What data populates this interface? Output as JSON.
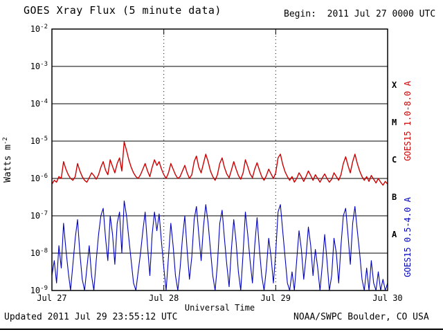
{
  "title": "GOES Xray Flux (5 minute data)",
  "begin_label": "Begin:  2011 Jul 27 0000 UTC",
  "footer": {
    "updated": "Updated 2011 Jul 29 23:55:12 UTC",
    "source": "NOAA/SWPC Boulder, CO USA"
  },
  "colors": {
    "long": "#cc0000",
    "short": "#0000bb",
    "axis": "#000000",
    "background": "#ffffff"
  },
  "chart_data": {
    "type": "line",
    "title": "GOES Xray Flux (5 minute data)",
    "xlabel": "Universal Time",
    "ylabel": "Watts m^-2",
    "x_axis_units": "hours since 2011 Jul 27 0000 UTC",
    "x_start_hours": 0,
    "x_end_hours": 72,
    "x_ticks": [
      {
        "label": "Jul 27",
        "hour": 0
      },
      {
        "label": "Jul 28",
        "hour": 24
      },
      {
        "label": "Jul 29",
        "hour": 48
      },
      {
        "label": "Jul 30",
        "hour": 72
      }
    ],
    "y_scale": "log10",
    "y_exponents": [
      -2,
      -3,
      -4,
      -5,
      -6,
      -7,
      -8,
      -9
    ],
    "ylim_log": [
      -9,
      -2
    ],
    "grid": {
      "horizontal": "solid",
      "vertical_dotted_hours": [
        24,
        48
      ]
    },
    "legend_position": "right-rotated",
    "flare_classes": [
      {
        "label": "X",
        "exp_range": [
          -4,
          -3
        ]
      },
      {
        "label": "M",
        "exp_range": [
          -5,
          -4
        ]
      },
      {
        "label": "C",
        "exp_range": [
          -6,
          -5
        ]
      },
      {
        "label": "B",
        "exp_range": [
          -7,
          -6
        ]
      },
      {
        "label": "A",
        "exp_range": [
          -8,
          -7
        ]
      }
    ],
    "series": [
      {
        "name": "GOES15 1.0-8.0 A",
        "color_key": "long",
        "step_hours": 0.5,
        "log10_values": [
          -6.15,
          -6.05,
          -6.1,
          -5.95,
          -6.0,
          -5.55,
          -5.75,
          -5.9,
          -6.0,
          -6.05,
          -5.95,
          -5.6,
          -5.8,
          -5.95,
          -6.05,
          -6.1,
          -5.98,
          -5.85,
          -5.92,
          -6.02,
          -5.9,
          -5.7,
          -5.55,
          -5.78,
          -5.9,
          -5.5,
          -5.68,
          -5.85,
          -5.6,
          -5.45,
          -5.8,
          -5.02,
          -5.25,
          -5.5,
          -5.7,
          -5.85,
          -5.95,
          -6.0,
          -5.9,
          -5.75,
          -5.6,
          -5.8,
          -5.95,
          -5.7,
          -5.5,
          -5.65,
          -5.55,
          -5.75,
          -5.9,
          -6.0,
          -5.85,
          -5.6,
          -5.75,
          -5.9,
          -6.0,
          -5.95,
          -5.8,
          -5.65,
          -5.85,
          -6.0,
          -5.9,
          -5.55,
          -5.4,
          -5.7,
          -5.85,
          -5.6,
          -5.35,
          -5.55,
          -5.8,
          -5.95,
          -6.05,
          -5.9,
          -5.6,
          -5.45,
          -5.7,
          -5.88,
          -5.98,
          -5.78,
          -5.55,
          -5.75,
          -5.92,
          -6.02,
          -5.85,
          -5.5,
          -5.68,
          -5.88,
          -5.98,
          -5.75,
          -5.58,
          -5.78,
          -5.95,
          -6.05,
          -5.92,
          -5.75,
          -5.88,
          -6.0,
          -5.85,
          -5.45,
          -5.35,
          -5.62,
          -5.82,
          -5.95,
          -6.05,
          -5.95,
          -6.1,
          -6.0,
          -5.85,
          -5.95,
          -6.08,
          -5.95,
          -5.8,
          -5.92,
          -6.05,
          -5.9,
          -6.0,
          -6.1,
          -5.98,
          -5.88,
          -6.0,
          -6.1,
          -6.02,
          -5.85,
          -5.95,
          -6.05,
          -5.9,
          -5.6,
          -5.42,
          -5.65,
          -5.85,
          -5.55,
          -5.35,
          -5.6,
          -5.8,
          -5.95,
          -6.05,
          -5.95,
          -6.08,
          -5.92,
          -6.02,
          -6.12,
          -6.0,
          -6.1,
          -6.18,
          -6.08,
          -6.15
        ]
      },
      {
        "name": "GOES15 0.5-4.0 A",
        "color_key": "short",
        "step_hours": 0.5,
        "log10_values": [
          -8.6,
          -8.2,
          -8.8,
          -7.8,
          -8.4,
          -7.2,
          -7.9,
          -8.5,
          -9.0,
          -8.3,
          -7.6,
          -7.1,
          -8.0,
          -8.7,
          -9.0,
          -8.4,
          -7.8,
          -8.6,
          -9.0,
          -8.2,
          -7.5,
          -7.0,
          -6.8,
          -7.6,
          -8.2,
          -7.0,
          -7.5,
          -8.3,
          -7.2,
          -6.9,
          -8.0,
          -6.6,
          -7.0,
          -7.6,
          -8.2,
          -8.8,
          -9.0,
          -8.5,
          -8.0,
          -7.4,
          -6.9,
          -7.8,
          -8.6,
          -7.5,
          -6.9,
          -7.4,
          -6.95,
          -7.7,
          -8.4,
          -9.0,
          -8.1,
          -7.2,
          -7.8,
          -8.6,
          -9.0,
          -8.4,
          -7.6,
          -7.0,
          -7.9,
          -8.7,
          -8.1,
          -7.1,
          -6.75,
          -7.5,
          -8.2,
          -7.3,
          -6.7,
          -7.2,
          -7.9,
          -8.6,
          -9.0,
          -8.3,
          -7.2,
          -6.85,
          -7.6,
          -8.3,
          -8.9,
          -7.9,
          -7.1,
          -7.7,
          -8.5,
          -9.0,
          -8.0,
          -6.9,
          -7.5,
          -8.2,
          -8.8,
          -7.8,
          -7.05,
          -7.9,
          -8.6,
          -9.0,
          -8.4,
          -7.6,
          -8.1,
          -8.8,
          -8.0,
          -6.9,
          -6.7,
          -7.4,
          -8.1,
          -8.8,
          -9.0,
          -8.5,
          -9.0,
          -8.2,
          -7.4,
          -7.9,
          -8.7,
          -8.1,
          -7.3,
          -7.8,
          -8.6,
          -7.9,
          -8.4,
          -9.0,
          -8.3,
          -7.5,
          -8.2,
          -9.0,
          -8.6,
          -7.6,
          -8.0,
          -8.8,
          -7.8,
          -7.0,
          -6.8,
          -7.5,
          -8.3,
          -7.2,
          -6.75,
          -7.4,
          -8.0,
          -8.7,
          -9.0,
          -8.4,
          -9.0,
          -8.2,
          -8.8,
          -9.0,
          -8.5,
          -9.0,
          -8.7,
          -9.0,
          -8.8
        ]
      }
    ]
  }
}
